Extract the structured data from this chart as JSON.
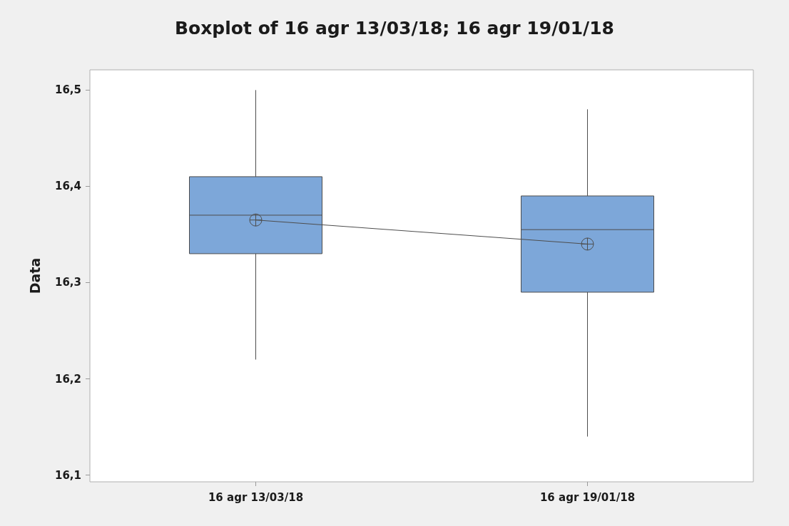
{
  "chart_data": {
    "type": "box",
    "title": "Boxplot of 16 agr 13/03/18; 16 agr 19/01/18",
    "ylabel": "Data",
    "categories": [
      "16 agr 13/03/18",
      "16 agr 19/01/18"
    ],
    "boxes": [
      {
        "low": 16.22,
        "q1": 16.33,
        "median": 16.37,
        "q3": 16.41,
        "high": 16.5
      },
      {
        "low": 16.14,
        "q1": 16.29,
        "median": 16.355,
        "q3": 16.39,
        "high": 16.48
      }
    ],
    "color": "#7da7d9",
    "series": [
      {
        "type": "line",
        "color": "#4d4d4d",
        "values": [
          16.365,
          16.34
        ]
      }
    ],
    "marker": "cross",
    "ylim": [
      16.093,
      16.521
    ],
    "yticks": [
      {
        "value": 16.1,
        "label": "16,1"
      },
      {
        "value": 16.2,
        "label": "16,2"
      },
      {
        "value": 16.3,
        "label": "16,3"
      },
      {
        "value": 16.4,
        "label": "16,4"
      },
      {
        "value": 16.5,
        "label": "16,5"
      }
    ],
    "grid": false
  }
}
